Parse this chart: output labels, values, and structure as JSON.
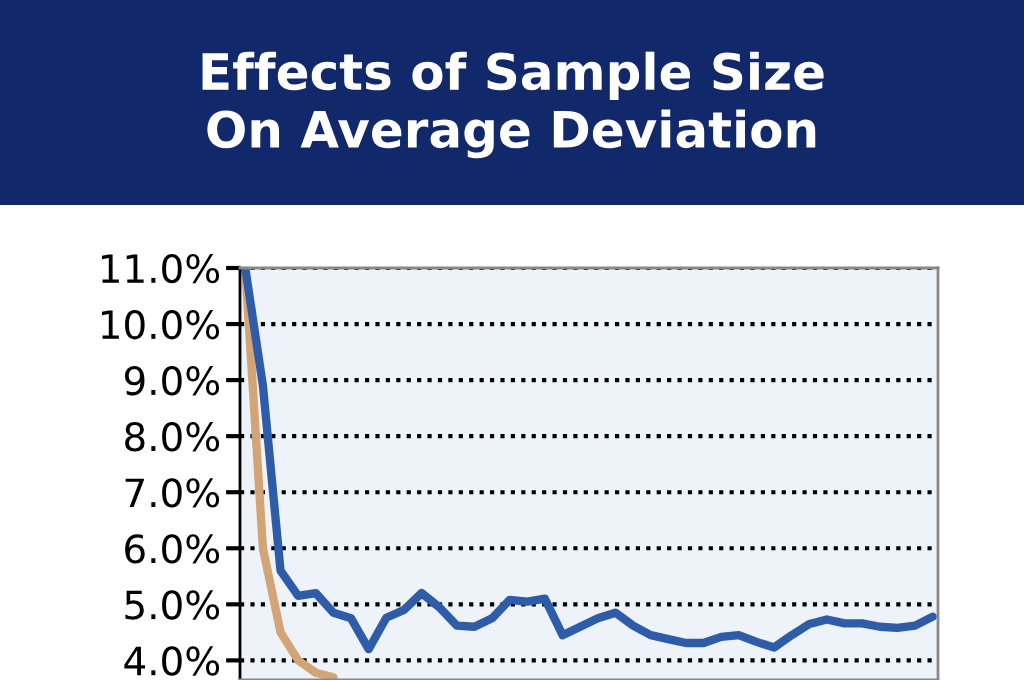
{
  "chart_data": {
    "type": "line",
    "title": "Effects of Sample Size\nOn Average Deviation",
    "categories": [
      null,
      null,
      null,
      null,
      null,
      null,
      null,
      null,
      null,
      null,
      null,
      null,
      null,
      null,
      null,
      null,
      null,
      null,
      null,
      null,
      null,
      null,
      null,
      null,
      null,
      null,
      null,
      null,
      null,
      null,
      null,
      null,
      null,
      null,
      null,
      null,
      null,
      null,
      null,
      null
    ],
    "series": [
      {
        "color": "#d2a476",
        "values": [
          11.0,
          6.0,
          4.5,
          4.0,
          3.78,
          3.7,
          null,
          null,
          null,
          null,
          null,
          null,
          null,
          null,
          null,
          null,
          null,
          null,
          null,
          null,
          null,
          null,
          null,
          null,
          null,
          null,
          null,
          null,
          null,
          null,
          null,
          null,
          null,
          null,
          null,
          null,
          null,
          null,
          null,
          null
        ]
      },
      {
        "color": "#2e5ca8",
        "values": [
          11.0,
          8.9,
          5.6,
          5.15,
          5.2,
          4.85,
          4.75,
          4.2,
          4.76,
          4.9,
          5.2,
          4.95,
          4.62,
          4.6,
          4.75,
          5.08,
          5.05,
          5.1,
          4.45,
          4.6,
          4.75,
          4.85,
          4.62,
          4.45,
          4.38,
          4.31,
          4.31,
          4.42,
          4.45,
          4.33,
          4.23,
          4.45,
          4.65,
          4.73,
          4.66,
          4.66,
          4.6,
          4.58,
          4.62,
          4.78
        ]
      }
    ],
    "ylim": [
      3.65,
      11.0
    ],
    "yticks": [
      {
        "value": 4,
        "label": "4.0%"
      },
      {
        "value": 5,
        "label": "5.0%"
      },
      {
        "value": 6,
        "label": "6.0%"
      },
      {
        "value": 7,
        "label": "7.0%"
      },
      {
        "value": 8,
        "label": "8.0%"
      },
      {
        "value": 9,
        "label": "9.0%"
      },
      {
        "value": 10,
        "label": "10.0%"
      },
      {
        "value": 11,
        "label": "11.0%"
      }
    ],
    "grid": "y",
    "tick_labels": "y",
    "line_style": "solid",
    "marker": "none",
    "legend": false
  }
}
